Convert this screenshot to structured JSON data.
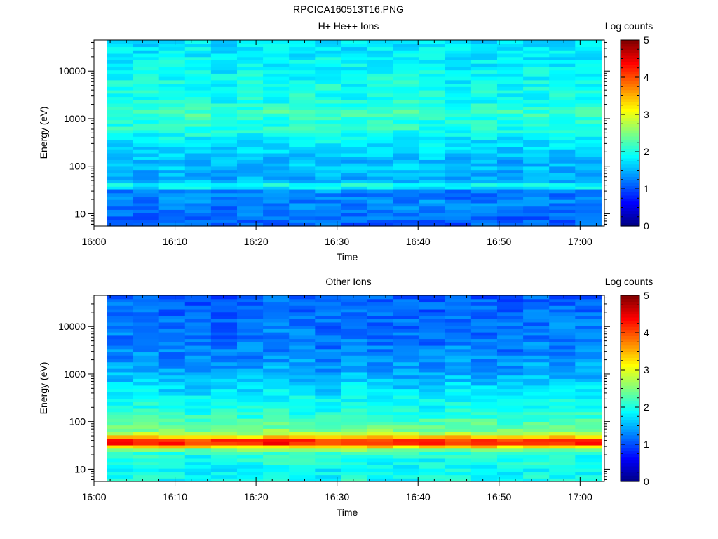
{
  "title": "RPCICA160513T16.PNG",
  "chart_data": [
    {
      "type": "heatmap",
      "title": "H+ He++ Ions",
      "xlabel": "Time",
      "ylabel": "Energy (eV)",
      "x_ticks": [
        "16:00",
        "16:10",
        "16:20",
        "16:30",
        "16:40",
        "16:50",
        "17:00"
      ],
      "x_tick_values": [
        0,
        10,
        20,
        30,
        40,
        50,
        60
      ],
      "xlim": [
        0,
        63
      ],
      "data_xlim": [
        1.6,
        62.6
      ],
      "y_scale": "log",
      "y_ticks": [
        "10",
        "100",
        "1000",
        "10000"
      ],
      "y_tick_values": [
        10,
        100,
        1000,
        10000
      ],
      "ylim": [
        5.5,
        45000
      ],
      "colorbar": {
        "label": "Log counts",
        "ticks": [
          "0",
          "1",
          "2",
          "3",
          "4",
          "5"
        ],
        "range": [
          0,
          5
        ]
      },
      "time_bins": 19,
      "energy_profile": [
        [
          7,
          1.1
        ],
        [
          9,
          1.15
        ],
        [
          11,
          1.2
        ],
        [
          14,
          1.25
        ],
        [
          17,
          1.3
        ],
        [
          20,
          1.25
        ],
        [
          24,
          1.2
        ],
        [
          30,
          1.3
        ],
        [
          36,
          1.85
        ],
        [
          42,
          1.95
        ],
        [
          48,
          1.55
        ],
        [
          56,
          1.45
        ],
        [
          70,
          1.5
        ],
        [
          90,
          1.55
        ],
        [
          120,
          1.55
        ],
        [
          160,
          1.6
        ],
        [
          220,
          1.7
        ],
        [
          300,
          1.75
        ],
        [
          450,
          1.9
        ],
        [
          600,
          2.0
        ],
        [
          800,
          2.05
        ],
        [
          1000,
          2.0
        ],
        [
          1300,
          2.25
        ],
        [
          1600,
          2.05
        ],
        [
          2500,
          1.95
        ],
        [
          4000,
          1.95
        ],
        [
          7000,
          1.9
        ],
        [
          12000,
          1.85
        ],
        [
          20000,
          1.8
        ],
        [
          40000,
          1.75
        ]
      ]
    },
    {
      "type": "heatmap",
      "title": "Other Ions",
      "xlabel": "Time",
      "ylabel": "Energy (eV)",
      "x_ticks": [
        "16:00",
        "16:10",
        "16:20",
        "16:30",
        "16:40",
        "16:50",
        "17:00"
      ],
      "x_tick_values": [
        0,
        10,
        20,
        30,
        40,
        50,
        60
      ],
      "xlim": [
        0,
        63
      ],
      "data_xlim": [
        1.6,
        62.6
      ],
      "y_scale": "log",
      "y_ticks": [
        "10",
        "100",
        "1000",
        "10000"
      ],
      "y_tick_values": [
        10,
        100,
        1000,
        10000
      ],
      "ylim": [
        5.5,
        45000
      ],
      "colorbar": {
        "label": "Log counts",
        "ticks": [
          "0",
          "1",
          "2",
          "3",
          "4",
          "5"
        ],
        "range": [
          0,
          5
        ]
      },
      "time_bins": 19,
      "energy_profile": [
        [
          7,
          1.95
        ],
        [
          9,
          1.9
        ],
        [
          11,
          1.95
        ],
        [
          14,
          2.0
        ],
        [
          17,
          2.0
        ],
        [
          20,
          2.0
        ],
        [
          24,
          2.2
        ],
        [
          28,
          2.9
        ],
        [
          32,
          3.9
        ],
        [
          36,
          4.3
        ],
        [
          40,
          4.2
        ],
        [
          45,
          3.8
        ],
        [
          52,
          3.0
        ],
        [
          60,
          2.6
        ],
        [
          75,
          2.4
        ],
        [
          100,
          2.25
        ],
        [
          150,
          2.05
        ],
        [
          250,
          1.9
        ],
        [
          400,
          1.8
        ],
        [
          600,
          1.65
        ],
        [
          1000,
          1.5
        ],
        [
          1600,
          1.4
        ],
        [
          2500,
          1.3
        ],
        [
          4000,
          1.25
        ],
        [
          7000,
          1.2
        ],
        [
          12000,
          1.2
        ],
        [
          20000,
          1.15
        ],
        [
          40000,
          1.1
        ]
      ]
    }
  ]
}
